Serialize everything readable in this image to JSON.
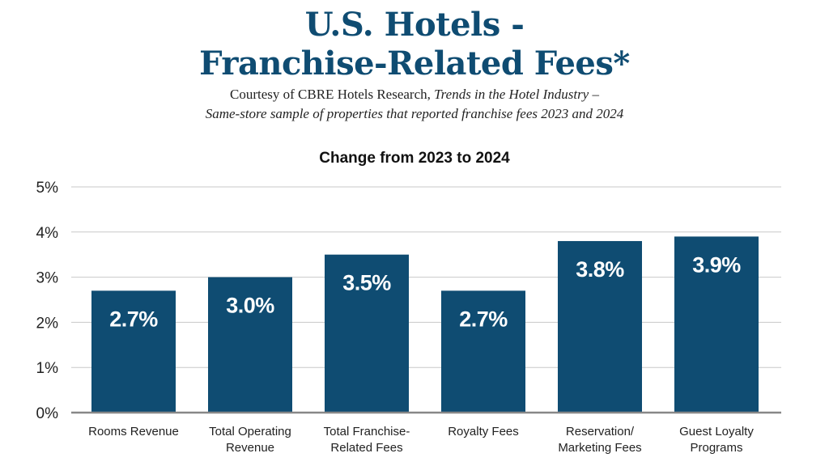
{
  "colors": {
    "title": "#0f4c72",
    "bar": "#0f4c72",
    "bar_label": "#ffffff",
    "grid": "#c8c8c8",
    "axis": "#888888",
    "text": "#222222"
  },
  "header": {
    "title_line1": "U.S. Hotels -",
    "title_line2": "Franchise-Related Fees*",
    "subtitle_line1_plain": "Courtesy of CBRE Hotels Research, ",
    "subtitle_line1_italic": "Trends in the Hotel Industry –",
    "subtitle_line2": "Same-store sample of properties that reported franchise fees 2023 and 2024"
  },
  "chart_data": {
    "type": "bar",
    "title": "Change from 2023 to 2024",
    "xlabel": "",
    "ylabel": "",
    "ylim": [
      0,
      5
    ],
    "yticks": [
      0,
      1,
      2,
      3,
      4,
      5
    ],
    "ytick_labels": [
      "0%",
      "1%",
      "2%",
      "3%",
      "4%",
      "5%"
    ],
    "grid": true,
    "legend": "none",
    "categories": [
      [
        "Rooms Revenue"
      ],
      [
        "Total Operating",
        "Revenue"
      ],
      [
        "Total Franchise-",
        "Related Fees"
      ],
      [
        "Royalty Fees"
      ],
      [
        "Reservation/",
        "Marketing Fees"
      ],
      [
        "Guest Loyalty",
        "Programs"
      ]
    ],
    "values": [
      2.7,
      3.0,
      3.5,
      2.7,
      3.8,
      3.9
    ],
    "value_labels": [
      "2.7%",
      "3.0%",
      "3.5%",
      "2.7%",
      "3.8%",
      "3.9%"
    ]
  }
}
